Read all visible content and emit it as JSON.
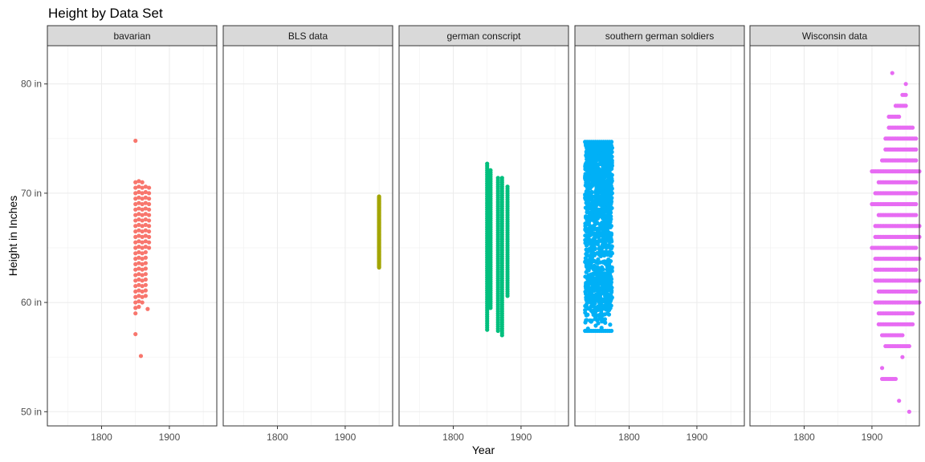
{
  "chart_data": {
    "type": "scatter",
    "title": "Height by Data Set",
    "xlabel": "Year",
    "ylabel": "Height in Inches",
    "xlim": [
      1720,
      1970
    ],
    "ylim": [
      48.7,
      83.5
    ],
    "x_ticks": [
      1800,
      1900
    ],
    "x_tick_labels": [
      "1800",
      "1900"
    ],
    "y_ticks": [
      50,
      60,
      70,
      80
    ],
    "y_tick_labels": [
      "50 in",
      "60 in",
      "70 in",
      "80 in"
    ],
    "x_minor_ticks": [
      1750,
      1850,
      1950
    ],
    "y_minor_ticks": [
      55,
      65,
      75
    ],
    "grid": true,
    "legend": "none",
    "panels": [
      {
        "name": "bavarian",
        "color": "#F8766D",
        "columns": [
          {
            "x": 1850,
            "y_min": 59.0,
            "y_max": 71.2,
            "step": 0.5
          },
          {
            "x": 1855,
            "y_min": 59.6,
            "y_max": 71.2,
            "step": 0.5
          },
          {
            "x": 1860,
            "y_min": 60.0,
            "y_max": 71.2,
            "step": 0.5
          },
          {
            "x": 1865,
            "y_min": 60.6,
            "y_max": 70.6,
            "step": 0.5
          },
          {
            "x": 1870,
            "y_min": 65.0,
            "y_max": 70.8,
            "step": 0.5
          }
        ],
        "points": [
          {
            "x": 1850,
            "y": 74.8
          },
          {
            "x": 1850,
            "y": 57.1
          },
          {
            "x": 1858,
            "y": 55.1
          },
          {
            "x": 1868,
            "y": 59.4
          }
        ]
      },
      {
        "name": "BLS data",
        "color": "#A3A500",
        "columns": [
          {
            "x": 1950,
            "y_min": 63.2,
            "y_max": 69.7,
            "step": 0.1
          }
        ],
        "points": []
      },
      {
        "name": "german conscript",
        "color": "#00BF7D",
        "columns": [
          {
            "x": 1850,
            "y_min": 57.5,
            "y_max": 72.8,
            "step": 0.2
          },
          {
            "x": 1855,
            "y_min": 59.5,
            "y_max": 72.2,
            "step": 0.2
          },
          {
            "x": 1866,
            "y_min": 57.4,
            "y_max": 71.4,
            "step": 0.2
          },
          {
            "x": 1872,
            "y_min": 57.0,
            "y_max": 71.4,
            "step": 0.2
          },
          {
            "x": 1880,
            "y_min": 60.6,
            "y_max": 70.7,
            "step": 0.2
          }
        ],
        "points": []
      },
      {
        "name": "southern german soldiers",
        "color": "#00B0F6",
        "band": {
          "x_min": 1735,
          "x_max": 1775,
          "y_min": 57.4,
          "y_max": 74.7
        },
        "points": []
      },
      {
        "name": "Wisconsin data",
        "color": "#E76BF3",
        "rows": [
          {
            "y": 81,
            "x": [
              1930
            ]
          },
          {
            "y": 80,
            "x": [
              1950
            ]
          },
          {
            "y": 79,
            "x": [
              1945,
              1950
            ]
          },
          {
            "y": 78,
            "x": [
              1935,
              1950,
              1955
            ]
          },
          {
            "y": 77,
            "x": [
              1925,
              1940,
              1955
            ]
          },
          {
            "y": 76,
            "x": [
              1925,
              1960
            ]
          },
          {
            "y": 75,
            "x": [
              1920,
              1965
            ]
          },
          {
            "y": 74,
            "x": [
              1920,
              1965
            ]
          },
          {
            "y": 73,
            "x": [
              1915,
              1965
            ]
          },
          {
            "y": 72,
            "x": [
              1900,
              1970
            ]
          },
          {
            "y": 71,
            "x": [
              1910,
              1965
            ]
          },
          {
            "y": 70,
            "x": [
              1905,
              1965
            ]
          },
          {
            "y": 69,
            "x": [
              1900,
              1965
            ]
          },
          {
            "y": 68,
            "x": [
              1910,
              1965
            ]
          },
          {
            "y": 67,
            "x": [
              1905,
              1970
            ]
          },
          {
            "y": 66,
            "x": [
              1905,
              1970
            ]
          },
          {
            "y": 65,
            "x": [
              1900,
              1965
            ]
          },
          {
            "y": 64,
            "x": [
              1905,
              1970
            ]
          },
          {
            "y": 63,
            "x": [
              1905,
              1965
            ]
          },
          {
            "y": 62,
            "x": [
              1905,
              1970
            ]
          },
          {
            "y": 61,
            "x": [
              1910,
              1965
            ]
          },
          {
            "y": 60,
            "x": [
              1905,
              1970
            ]
          },
          {
            "y": 59,
            "x": [
              1910,
              1960
            ]
          },
          {
            "y": 58,
            "x": [
              1910,
              1960
            ]
          },
          {
            "y": 57,
            "x": [
              1915,
              1945
            ]
          },
          {
            "y": 56,
            "x": [
              1920,
              1955
            ]
          },
          {
            "y": 55,
            "x": [
              1945
            ]
          },
          {
            "y": 54,
            "x": [
              1915
            ]
          },
          {
            "y": 53,
            "x": [
              1915,
              1935
            ]
          },
          {
            "y": 51,
            "x": [
              1940
            ]
          },
          {
            "y": 50,
            "x": [
              1955
            ]
          }
        ],
        "points": []
      }
    ]
  }
}
